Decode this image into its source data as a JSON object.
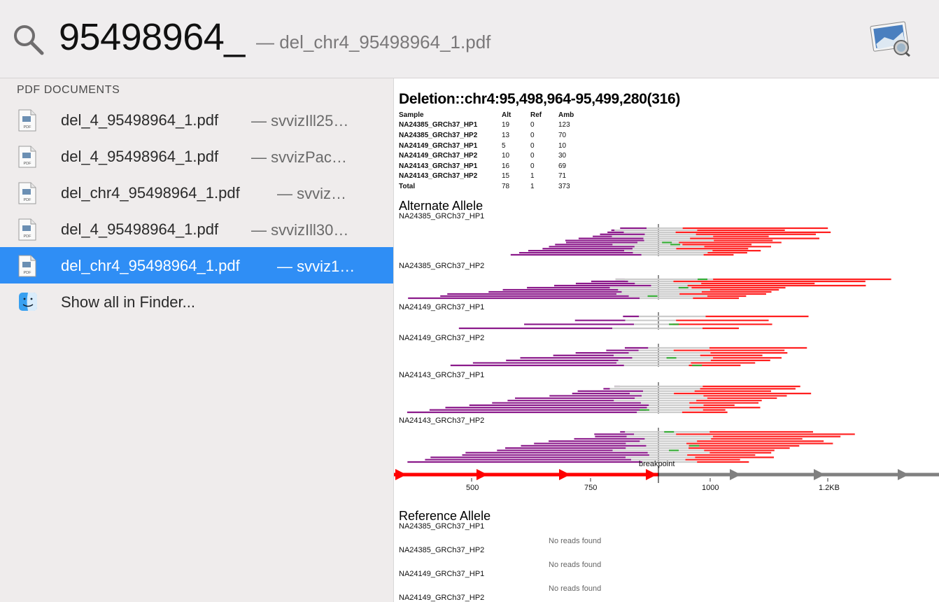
{
  "search": {
    "query": "95498964_",
    "hint": "— del_chr4_95498964_1.pdf",
    "icon": "search-icon",
    "app_icon": "preview-app-icon"
  },
  "results": {
    "section_title": "PDF DOCUMENTS",
    "items": [
      {
        "name": "del_4_95498964_1.pdf",
        "path": "— svvizIll25…",
        "icon": "pdf-file-icon",
        "selected": false
      },
      {
        "name": "del_4_95498964_1.pdf",
        "path": "— svvizPac…",
        "icon": "pdf-file-icon",
        "selected": false
      },
      {
        "name": "del_chr4_95498964_1.pdf",
        "path": "— svviz…",
        "icon": "pdf-file-icon",
        "selected": false
      },
      {
        "name": "del_4_95498964_1.pdf",
        "path": "— svvizIll30…",
        "icon": "pdf-file-icon",
        "selected": false
      },
      {
        "name": "del_chr4_95498964_1.pdf",
        "path": "— svviz1…",
        "icon": "pdf-file-icon",
        "selected": true
      }
    ],
    "finder": {
      "label": "Show all in Finder...",
      "icon": "finder-icon"
    }
  },
  "preview": {
    "title": "Deletion::chr4:95,498,964-95,499,280(316)",
    "table": {
      "headers": [
        "Sample",
        "Alt",
        "Ref",
        "Amb"
      ],
      "rows": [
        [
          "NA24385_GRCh37_HP1",
          "19",
          "0",
          "123"
        ],
        [
          "NA24385_GRCh37_HP2",
          "13",
          "0",
          "70"
        ],
        [
          "NA24149_GRCh37_HP1",
          "5",
          "0",
          "10"
        ],
        [
          "NA24149_GRCh37_HP2",
          "10",
          "0",
          "30"
        ],
        [
          "NA24143_GRCh37_HP1",
          "16",
          "0",
          "69"
        ],
        [
          "NA24143_GRCh37_HP2",
          "15",
          "1",
          "71"
        ],
        [
          "Total",
          "78",
          "1",
          "373"
        ]
      ]
    },
    "alt_heading": "Alternate Allele",
    "alt_samples": [
      "NA24385_GRCh37_HP1",
      "NA24385_GRCh37_HP2",
      "NA24149_GRCh37_HP1",
      "NA24149_GRCh37_HP2",
      "NA24143_GRCh37_HP1",
      "NA24143_GRCh37_HP2"
    ],
    "breakpoint_label": "breakpoint",
    "axis_ticks": [
      "500",
      "750",
      "1000",
      "1.2KB"
    ],
    "ref_heading": "Reference Allele",
    "ref_samples": [
      "NA24385_GRCh37_HP1",
      "NA24385_GRCh37_HP2",
      "NA24149_GRCh37_HP1",
      "NA24149_GRCh37_HP2"
    ],
    "no_reads": [
      "No reads found",
      "No reads found",
      "No reads found"
    ],
    "colors": {
      "left_segment": "#ff0000",
      "right_segment": "#808080",
      "alt_read": "#8b1a8b",
      "ref_read": "#ff2020",
      "gap": "#cccccc",
      "mismatch": "#33aa33"
    }
  }
}
